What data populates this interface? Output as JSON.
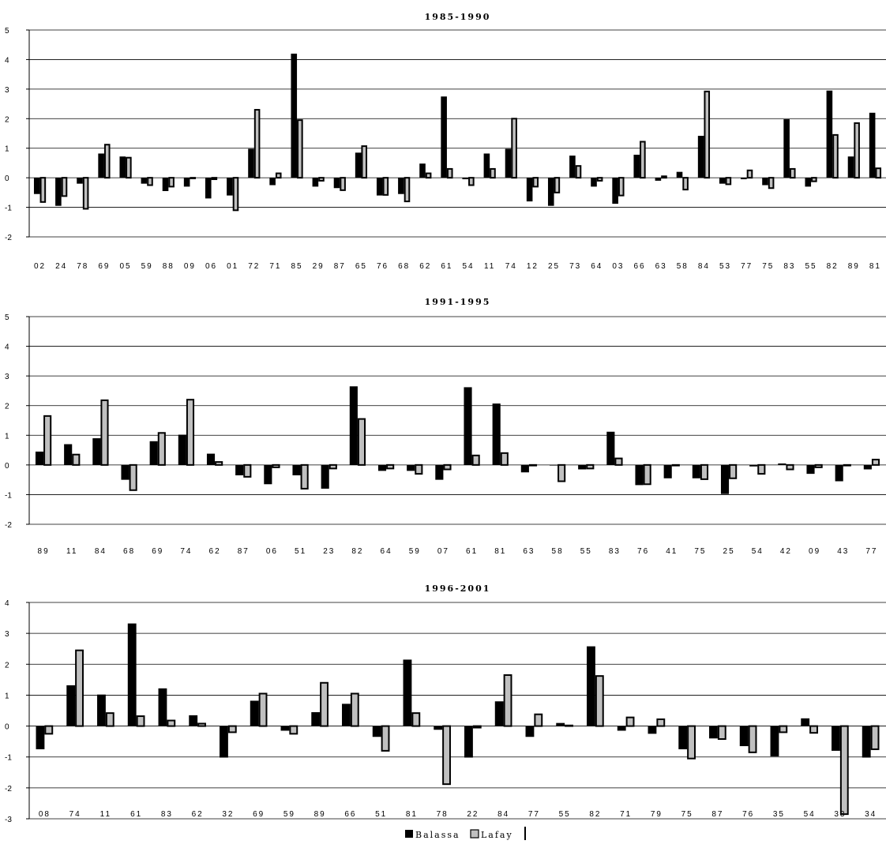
{
  "legend": [
    "Balassa",
    "Lafay"
  ],
  "colors": {
    "balassa": "#000000",
    "lafay": "#c0c0c0",
    "gridline": "#000000"
  },
  "chart_data": [
    {
      "type": "bar",
      "title": "1985-1990",
      "ylim": [
        -2,
        5
      ],
      "yticks": [
        -2,
        -1,
        0,
        1,
        2,
        3,
        4,
        5
      ],
      "categories": [
        "02",
        "24",
        "78",
        "69",
        "05",
        "59",
        "88",
        "09",
        "06",
        "01",
        "72",
        "71",
        "85",
        "29",
        "87",
        "65",
        "76",
        "68",
        "62",
        "61",
        "54",
        "11",
        "74",
        "12",
        "25",
        "73",
        "64",
        "03",
        "66",
        "63",
        "58",
        "84",
        "53",
        "77",
        "75",
        "83",
        "55",
        "82",
        "89",
        "81"
      ],
      "series": [
        {
          "name": "Balassa",
          "values": [
            -0.55,
            -0.95,
            -0.2,
            0.82,
            0.72,
            -0.2,
            -0.45,
            -0.3,
            -0.7,
            -0.6,
            0.98,
            -0.25,
            4.2,
            -0.3,
            -0.35,
            0.85,
            -0.6,
            -0.55,
            0.48,
            2.75,
            -0.05,
            0.82,
            0.98,
            -0.8,
            -0.95,
            0.75,
            -0.3,
            -0.88,
            0.78,
            -0.1,
            0.2,
            1.42,
            -0.2,
            -0.05,
            -0.25,
            1.98,
            -0.3,
            2.95,
            0.72,
            2.2
          ]
        },
        {
          "name": "Lafay",
          "values": [
            -0.82,
            -0.62,
            -1.05,
            1.12,
            0.68,
            -0.25,
            -0.3,
            -0.02,
            -0.05,
            -1.1,
            2.3,
            0.15,
            1.95,
            -0.1,
            -0.42,
            1.07,
            -0.58,
            -0.8,
            0.15,
            0.3,
            -0.25,
            0.3,
            2.0,
            -0.3,
            -0.5,
            0.4,
            -0.1,
            -0.6,
            1.22,
            0.05,
            -0.4,
            2.92,
            -0.22,
            0.25,
            -0.35,
            0.3,
            -0.12,
            1.45,
            1.85,
            0.32
          ]
        }
      ]
    },
    {
      "type": "bar",
      "title": "1991-1995",
      "ylim": [
        -2,
        5
      ],
      "yticks": [
        -2,
        -1,
        0,
        1,
        2,
        3,
        4,
        5
      ],
      "categories": [
        "89",
        "11",
        "84",
        "68",
        "69",
        "74",
        "62",
        "87",
        "06",
        "51",
        "23",
        "82",
        "64",
        "59",
        "07",
        "61",
        "81",
        "63",
        "58",
        "55",
        "83",
        "76",
        "41",
        "75",
        "25",
        "54",
        "42",
        "09",
        "43",
        "77"
      ],
      "series": [
        {
          "name": "Balassa",
          "values": [
            0.45,
            0.7,
            0.9,
            -0.5,
            0.8,
            1.02,
            0.38,
            -0.35,
            -0.65,
            -0.35,
            -0.8,
            2.65,
            -0.2,
            -0.2,
            -0.5,
            2.62,
            2.07,
            -0.25,
            -0.02,
            -0.15,
            1.12,
            -0.68,
            -0.45,
            -0.45,
            -0.98,
            -0.05,
            0.05,
            -0.3,
            -0.55,
            -0.15
          ]
        },
        {
          "name": "Lafay",
          "values": [
            1.65,
            0.35,
            2.18,
            -0.85,
            1.08,
            2.2,
            0.1,
            -0.4,
            -0.08,
            -0.8,
            -0.12,
            1.55,
            -0.12,
            -0.3,
            -0.15,
            0.32,
            0.4,
            -0.02,
            -0.55,
            -0.12,
            0.22,
            -0.65,
            -0.02,
            -0.48,
            -0.45,
            -0.3,
            -0.15,
            -0.08,
            -0.02,
            0.18
          ]
        }
      ]
    },
    {
      "type": "bar",
      "title": "1996-2001",
      "ylim": [
        -3,
        4
      ],
      "yticks": [
        -3,
        -2,
        -1,
        0,
        1,
        2,
        3,
        4
      ],
      "categories": [
        "08",
        "74",
        "11",
        "61",
        "83",
        "62",
        "32",
        "69",
        "59",
        "89",
        "66",
        "51",
        "81",
        "78",
        "22",
        "84",
        "77",
        "55",
        "82",
        "71",
        "79",
        "75",
        "87",
        "76",
        "35",
        "54",
        "33",
        "34"
      ],
      "series": [
        {
          "name": "Balassa",
          "values": [
            -0.75,
            1.32,
            1.02,
            3.32,
            1.22,
            0.35,
            -1.02,
            0.82,
            -0.15,
            0.45,
            0.72,
            -0.35,
            2.15,
            -0.12,
            -1.02,
            0.8,
            -0.35,
            0.1,
            2.58,
            -0.15,
            -0.25,
            -0.75,
            -0.4,
            -0.65,
            -0.98,
            0.25,
            -0.8,
            -1.02
          ]
        },
        {
          "name": "Lafay",
          "values": [
            -0.25,
            2.45,
            0.42,
            0.32,
            0.18,
            0.08,
            -0.2,
            1.05,
            -0.25,
            1.4,
            1.05,
            -0.8,
            0.42,
            -1.88,
            -0.05,
            1.65,
            0.38,
            0.02,
            1.62,
            0.28,
            0.22,
            -1.05,
            -0.42,
            -0.85,
            -0.2,
            -0.22,
            -2.85,
            -0.75
          ]
        }
      ]
    }
  ]
}
